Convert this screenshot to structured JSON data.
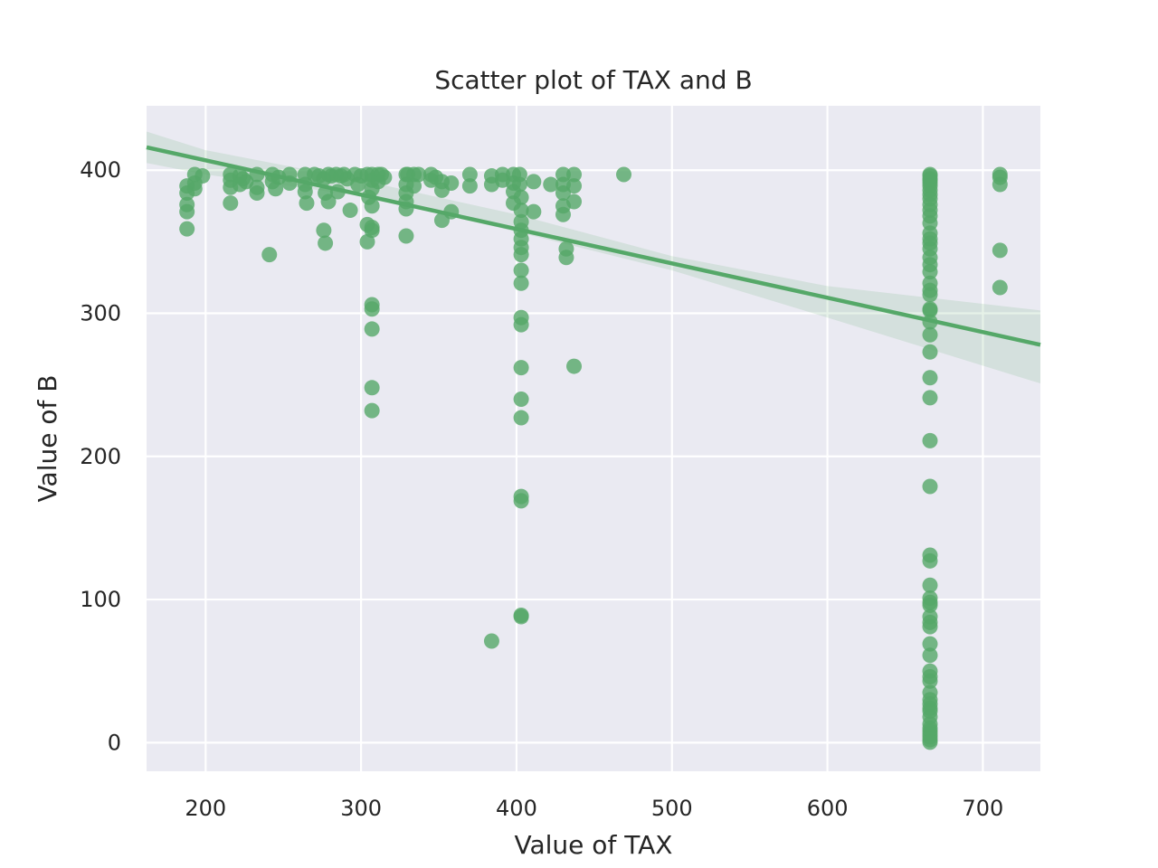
{
  "chart_data": {
    "type": "scatter",
    "title": "Scatter plot of TAX and B",
    "xlabel": "Value of TAX",
    "ylabel": "Value of B",
    "xlim": [
      162,
      737
    ],
    "ylim": [
      -20,
      445
    ],
    "xticks": [
      "200",
      "300",
      "400",
      "500",
      "600",
      "700"
    ],
    "yticks": [
      "0",
      "100",
      "200",
      "300",
      "400"
    ],
    "grid": true,
    "colors": {
      "background": "#eaeaf2",
      "grid": "#ffffff",
      "points": "#55a868",
      "regression": "#55a868",
      "ci_band": "#55a868"
    },
    "series": [
      {
        "points": [
          [
            188,
            384
          ],
          [
            188,
            389
          ],
          [
            188,
            376
          ],
          [
            188,
            371
          ],
          [
            188,
            359
          ],
          [
            193,
            397
          ],
          [
            193,
            391
          ],
          [
            193,
            387
          ],
          [
            198,
            396
          ],
          [
            216,
            397
          ],
          [
            216,
            393
          ],
          [
            216,
            388
          ],
          [
            216,
            377
          ],
          [
            222,
            396
          ],
          [
            222,
            390
          ],
          [
            224,
            394
          ],
          [
            226,
            392
          ],
          [
            233,
            397
          ],
          [
            233,
            388
          ],
          [
            233,
            384
          ],
          [
            241,
            341
          ],
          [
            243,
            397
          ],
          [
            243,
            392
          ],
          [
            245,
            387
          ],
          [
            247,
            395
          ],
          [
            254,
            397
          ],
          [
            254,
            391
          ],
          [
            264,
            397
          ],
          [
            264,
            390
          ],
          [
            264,
            385
          ],
          [
            265,
            377
          ],
          [
            270,
            397
          ],
          [
            273,
            396
          ],
          [
            276,
            394
          ],
          [
            276,
            358
          ],
          [
            277,
            349
          ],
          [
            277,
            384
          ],
          [
            279,
            397
          ],
          [
            279,
            378
          ],
          [
            281,
            396
          ],
          [
            284,
            397
          ],
          [
            285,
            385
          ],
          [
            287,
            396
          ],
          [
            289,
            397
          ],
          [
            291,
            394
          ],
          [
            293,
            372
          ],
          [
            296,
            397
          ],
          [
            298,
            390
          ],
          [
            300,
            396
          ],
          [
            304,
            397
          ],
          [
            304,
            350
          ],
          [
            304,
            362
          ],
          [
            305,
            381
          ],
          [
            307,
            397
          ],
          [
            307,
            393
          ],
          [
            307,
            387
          ],
          [
            307,
            375
          ],
          [
            307,
            358
          ],
          [
            307,
            360
          ],
          [
            307,
            306
          ],
          [
            307,
            303
          ],
          [
            307,
            289
          ],
          [
            307,
            248
          ],
          [
            307,
            232
          ],
          [
            311,
            397
          ],
          [
            311,
            392
          ],
          [
            313,
            397
          ],
          [
            315,
            395
          ],
          [
            329,
            397
          ],
          [
            329,
            390
          ],
          [
            329,
            384
          ],
          [
            329,
            378
          ],
          [
            329,
            373
          ],
          [
            329,
            354
          ],
          [
            330,
            397
          ],
          [
            334,
            397
          ],
          [
            334,
            389
          ],
          [
            337,
            397
          ],
          [
            345,
            397
          ],
          [
            345,
            393
          ],
          [
            348,
            395
          ],
          [
            352,
            392
          ],
          [
            352,
            386
          ],
          [
            352,
            365
          ],
          [
            358,
            391
          ],
          [
            358,
            371
          ],
          [
            370,
            397
          ],
          [
            370,
            389
          ],
          [
            384,
            396
          ],
          [
            384,
            390
          ],
          [
            384,
            71
          ],
          [
            391,
            397
          ],
          [
            391,
            393
          ],
          [
            398,
            397
          ],
          [
            398,
            391
          ],
          [
            398,
            385
          ],
          [
            398,
            377
          ],
          [
            402,
            397
          ],
          [
            402,
            390
          ],
          [
            403,
            381
          ],
          [
            403,
            372
          ],
          [
            403,
            364
          ],
          [
            403,
            358
          ],
          [
            403,
            352
          ],
          [
            403,
            346
          ],
          [
            403,
            341
          ],
          [
            403,
            330
          ],
          [
            403,
            321
          ],
          [
            403,
            297
          ],
          [
            403,
            292
          ],
          [
            403,
            262
          ],
          [
            403,
            240
          ],
          [
            403,
            227
          ],
          [
            403,
            172
          ],
          [
            403,
            169
          ],
          [
            403,
            89
          ],
          [
            403,
            88
          ],
          [
            411,
            392
          ],
          [
            411,
            371
          ],
          [
            422,
            390
          ],
          [
            430,
            397
          ],
          [
            430,
            390
          ],
          [
            430,
            384
          ],
          [
            430,
            375
          ],
          [
            430,
            369
          ],
          [
            432,
            345
          ],
          [
            432,
            339
          ],
          [
            437,
            397
          ],
          [
            437,
            389
          ],
          [
            437,
            378
          ],
          [
            437,
            263
          ],
          [
            469,
            397
          ],
          [
            666,
            397
          ],
          [
            666,
            396
          ],
          [
            666,
            394
          ],
          [
            666,
            393
          ],
          [
            666,
            391
          ],
          [
            666,
            389
          ],
          [
            666,
            386
          ],
          [
            666,
            383
          ],
          [
            666,
            380
          ],
          [
            666,
            376
          ],
          [
            666,
            372
          ],
          [
            666,
            368
          ],
          [
            666,
            363
          ],
          [
            666,
            356
          ],
          [
            666,
            352
          ],
          [
            666,
            349
          ],
          [
            666,
            345
          ],
          [
            666,
            339
          ],
          [
            666,
            334
          ],
          [
            666,
            329
          ],
          [
            666,
            321
          ],
          [
            666,
            316
          ],
          [
            666,
            313
          ],
          [
            666,
            303
          ],
          [
            666,
            302
          ],
          [
            666,
            294
          ],
          [
            666,
            285
          ],
          [
            666,
            273
          ],
          [
            666,
            255
          ],
          [
            666,
            241
          ],
          [
            666,
            211
          ],
          [
            666,
            179
          ],
          [
            666,
            131
          ],
          [
            666,
            127
          ],
          [
            666,
            110
          ],
          [
            666,
            101
          ],
          [
            666,
            98
          ],
          [
            666,
            96
          ],
          [
            666,
            88
          ],
          [
            666,
            84
          ],
          [
            666,
            81
          ],
          [
            666,
            69
          ],
          [
            666,
            61
          ],
          [
            666,
            50
          ],
          [
            666,
            46
          ],
          [
            666,
            43
          ],
          [
            666,
            35
          ],
          [
            666,
            30
          ],
          [
            666,
            27
          ],
          [
            666,
            24
          ],
          [
            666,
            22
          ],
          [
            666,
            18
          ],
          [
            666,
            13
          ],
          [
            666,
            10
          ],
          [
            666,
            8
          ],
          [
            666,
            6
          ],
          [
            666,
            4
          ],
          [
            666,
            2
          ],
          [
            666,
            0.3
          ],
          [
            711,
            397
          ],
          [
            711,
            395
          ],
          [
            711,
            390
          ],
          [
            711,
            344
          ],
          [
            711,
            318
          ]
        ]
      }
    ],
    "regression": {
      "x": [
        162,
        737
      ],
      "y": [
        416,
        278
      ]
    },
    "ci_band": {
      "x": [
        162,
        200,
        300,
        400,
        500,
        600,
        737
      ],
      "lower": [
        405,
        397,
        382,
        357,
        330,
        297,
        251
      ],
      "upper": [
        427,
        414,
        393,
        369,
        340,
        319,
        302
      ]
    }
  }
}
